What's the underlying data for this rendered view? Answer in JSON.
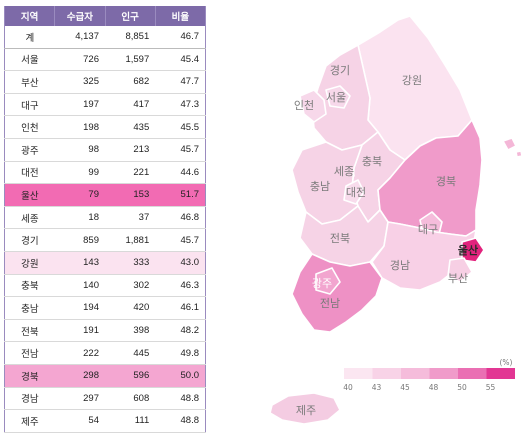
{
  "table": {
    "headers": [
      "지역",
      "수급자",
      "인구",
      "비율"
    ],
    "rows": [
      {
        "region": "계",
        "recipients": "4,137",
        "population": "8,851",
        "ratio": "46.7"
      },
      {
        "region": "서울",
        "recipients": "726",
        "population": "1,597",
        "ratio": "45.4"
      },
      {
        "region": "부산",
        "recipients": "325",
        "population": "682",
        "ratio": "47.7"
      },
      {
        "region": "대구",
        "recipients": "197",
        "population": "417",
        "ratio": "47.3"
      },
      {
        "region": "인천",
        "recipients": "198",
        "population": "435",
        "ratio": "45.5"
      },
      {
        "region": "광주",
        "recipients": "98",
        "population": "213",
        "ratio": "45.7"
      },
      {
        "region": "대전",
        "recipients": "99",
        "population": "221",
        "ratio": "44.6"
      },
      {
        "region": "울산",
        "recipients": "79",
        "population": "153",
        "ratio": "51.7"
      },
      {
        "region": "세종",
        "recipients": "18",
        "population": "37",
        "ratio": "46.8"
      },
      {
        "region": "경기",
        "recipients": "859",
        "population": "1,881",
        "ratio": "45.7"
      },
      {
        "region": "강원",
        "recipients": "143",
        "population": "333",
        "ratio": "43.0"
      },
      {
        "region": "충북",
        "recipients": "140",
        "population": "302",
        "ratio": "46.3"
      },
      {
        "region": "충남",
        "recipients": "194",
        "population": "420",
        "ratio": "46.1"
      },
      {
        "region": "전북",
        "recipients": "191",
        "population": "398",
        "ratio": "48.2"
      },
      {
        "region": "전남",
        "recipients": "222",
        "population": "445",
        "ratio": "49.8"
      },
      {
        "region": "경북",
        "recipients": "298",
        "population": "596",
        "ratio": "50.0"
      },
      {
        "region": "경남",
        "recipients": "297",
        "population": "608",
        "ratio": "48.8"
      },
      {
        "region": "제주",
        "recipients": "54",
        "population": "111",
        "ratio": "48.8"
      }
    ]
  },
  "map": {
    "labels": {
      "gyeonggi": "경기",
      "seoul": "서울",
      "incheon": "인천",
      "gangwon": "강원",
      "sejong": "세종",
      "chungbuk": "충북",
      "chungnam": "충남",
      "daejeon": "대전",
      "gyeongbuk": "경북",
      "jeonbuk": "전북",
      "daegu": "대구",
      "gyeongnam": "경남",
      "ulsan": "울산",
      "gwangju": "광주",
      "jeonnam": "전남",
      "busan": "부산",
      "jeju": "제주"
    }
  },
  "legend": {
    "unit": "(%)",
    "ticks": [
      "40",
      "43",
      "45",
      "48",
      "50",
      "55"
    ],
    "colors": [
      "#fbe6f1",
      "#f8d3e7",
      "#f5bcdb",
      "#f09bca",
      "#ea6fb3",
      "#e23693"
    ]
  },
  "colors": {
    "header_bg": "#7d6aa8",
    "highlight_strong": "#f26bb3",
    "highlight_medium": "#f4a6d1",
    "highlight_light": "#fbe3f0"
  }
}
